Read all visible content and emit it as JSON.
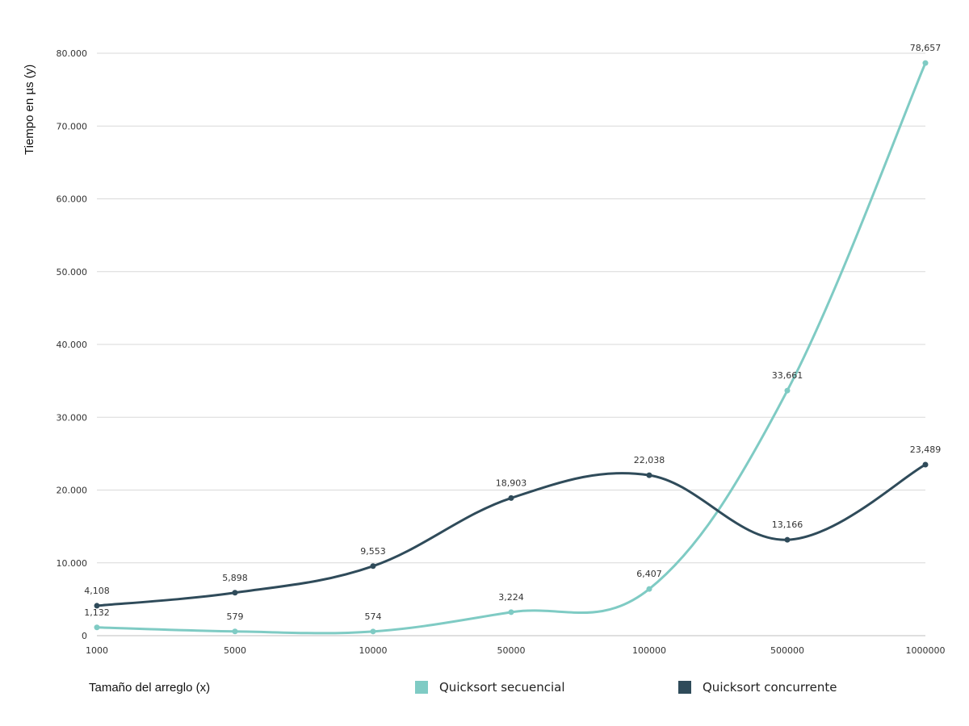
{
  "chart_data": {
    "type": "line",
    "title": "",
    "xlabel": "Tamaño del arreglo (x)",
    "ylabel": "Tiempo en µs  (y)",
    "categories": [
      "1000",
      "5000",
      "10000",
      "50000",
      "100000",
      "500000",
      "1000000"
    ],
    "y_ticks": [
      "0",
      "10.000",
      "20.000",
      "30.000",
      "40.000",
      "50.000",
      "60.000",
      "70.000",
      "80.000"
    ],
    "ylim": [
      0,
      80000
    ],
    "grid": true,
    "legend_position": "bottom",
    "series": [
      {
        "name": "Quicksort secuencial",
        "color": "#7fcbc4",
        "values": [
          1132,
          579,
          574,
          3224,
          6407,
          33661,
          78657
        ],
        "labels": [
          "1,132",
          "579",
          "574",
          "3,224",
          "6,407",
          "33,661",
          "78,657"
        ]
      },
      {
        "name": "Quicksort concurrente",
        "color": "#2f4b5a",
        "values": [
          4108,
          5898,
          9553,
          18903,
          22038,
          13166,
          23489
        ],
        "labels": [
          "4,108",
          "5,898",
          "9,553",
          "18,903",
          "22,038",
          "13,166",
          "23,489"
        ]
      }
    ]
  }
}
